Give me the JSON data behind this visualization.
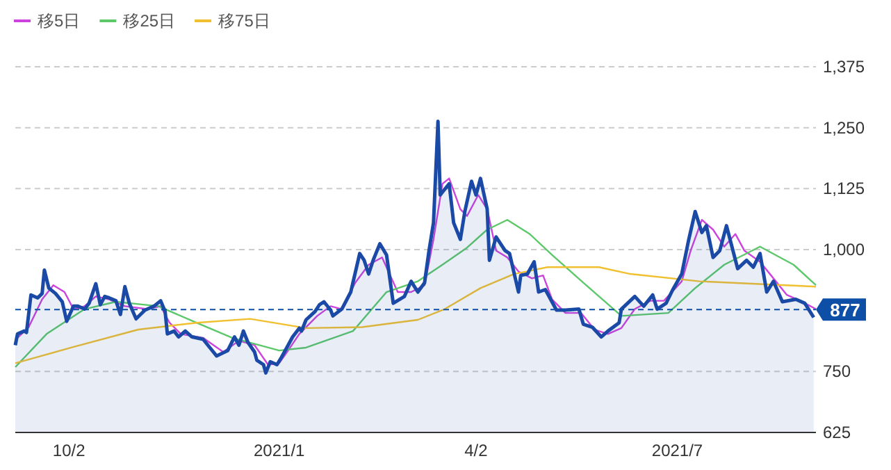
{
  "chart_data": {
    "type": "line",
    "xlim": [
      "2020-09-08",
      "2021-09-01"
    ],
    "xticks": [
      {
        "value": "2020-10-02",
        "label": "10/2"
      },
      {
        "value": "2021-01-04",
        "label": "2021/1"
      },
      {
        "value": "2021-04-02",
        "label": "4/2"
      },
      {
        "value": "2021-07-01",
        "label": "2021/7"
      }
    ],
    "ylim": [
      625,
      1375
    ],
    "yticks": [
      625,
      750,
      {
        "value": 1000,
        "label": "1,000"
      },
      {
        "value": 1125,
        "label": "1,125"
      },
      {
        "value": 1250,
        "label": "1,250"
      },
      {
        "value": 1375,
        "label": "1,375"
      }
    ],
    "grid": "y",
    "legend": "top left",
    "ref_lines": [
      {
        "axis": "y",
        "value": 877,
        "label": "877",
        "color": "#0d4ea6",
        "line_style": "dashed"
      }
    ],
    "series": [
      {
        "type": "area",
        "color": "#1a4aa6",
        "x": [
          "2020-09-08",
          "2020-09-09",
          "2020-09-12",
          "2020-09-13",
          "2020-09-15",
          "2020-09-18",
          "2020-09-20",
          "2020-09-21",
          "2020-09-23",
          "2020-09-26",
          "2020-09-29",
          "2020-10-01",
          "2020-10-04",
          "2020-10-06",
          "2020-10-09",
          "2020-10-11",
          "2020-10-14",
          "2020-10-16",
          "2020-10-18",
          "2020-10-20",
          "2020-10-23",
          "2020-10-25",
          "2020-10-27",
          "2020-10-29",
          "2020-11-01",
          "2020-11-05",
          "2020-11-09",
          "2020-11-12",
          "2020-11-14",
          "2020-11-15",
          "2020-11-18",
          "2020-11-20",
          "2020-11-23",
          "2020-11-26",
          "2020-12-01",
          "2020-12-04",
          "2020-12-07",
          "2020-12-12",
          "2020-12-15",
          "2020-12-17",
          "2020-12-19",
          "2020-12-21",
          "2020-12-24",
          "2020-12-25",
          "2020-12-28",
          "2020-12-29",
          "2020-12-31",
          "2021-01-03",
          "2021-01-05",
          "2021-01-08",
          "2021-01-10",
          "2021-01-13",
          "2021-01-14",
          "2021-01-16",
          "2021-01-20",
          "2021-01-22",
          "2021-01-24",
          "2021-01-27",
          "2021-01-28",
          "2021-02-01",
          "2021-02-05",
          "2021-02-09",
          "2021-02-11",
          "2021-02-13",
          "2021-02-15",
          "2021-02-18",
          "2021-02-21",
          "2021-02-24",
          "2021-03-01",
          "2021-03-04",
          "2021-03-07",
          "2021-03-10",
          "2021-03-12",
          "2021-03-14",
          "2021-03-16",
          "2021-03-17",
          "2021-03-18",
          "2021-03-21",
          "2021-03-23",
          "2021-03-26",
          "2021-03-28",
          "2021-03-31",
          "2021-04-02",
          "2021-04-04",
          "2021-04-07",
          "2021-04-08",
          "2021-04-11",
          "2021-04-15",
          "2021-04-17",
          "2021-04-21",
          "2021-04-22",
          "2021-04-25",
          "2021-04-28",
          "2021-04-30",
          "2021-05-03",
          "2021-05-08",
          "2021-05-12",
          "2021-05-18",
          "2021-05-20",
          "2021-05-24",
          "2021-05-28",
          "2021-05-31",
          "2021-06-05",
          "2021-06-06",
          "2021-06-12",
          "2021-06-16",
          "2021-06-20",
          "2021-06-22",
          "2021-06-26",
          "2021-06-29",
          "2021-07-03",
          "2021-07-06",
          "2021-07-09",
          "2021-07-12",
          "2021-07-14",
          "2021-07-17",
          "2021-07-20",
          "2021-07-23",
          "2021-07-28",
          "2021-08-01",
          "2021-08-04",
          "2021-08-07",
          "2021-08-10",
          "2021-08-13",
          "2021-08-17",
          "2021-08-23",
          "2021-08-27",
          "2021-08-31"
        ],
        "values": [
          804,
          827,
          833,
          830,
          907,
          901,
          910,
          958,
          921,
          910,
          893,
          853,
          884,
          884,
          878,
          890,
          930,
          887,
          904,
          901,
          895,
          867,
          924,
          890,
          858,
          876,
          884,
          895,
          873,
          827,
          833,
          821,
          833,
          821,
          816,
          799,
          782,
          793,
          821,
          804,
          833,
          810,
          790,
          773,
          764,
          747,
          770,
          764,
          779,
          804,
          821,
          839,
          833,
          856,
          873,
          887,
          893,
          876,
          864,
          878,
          913,
          992,
          978,
          950,
          978,
          1012,
          989,
          890,
          904,
          935,
          913,
          932,
          998,
          1055,
          1263,
          1112,
          1118,
          1135,
          1055,
          1021,
          1078,
          1140,
          1112,
          1146,
          1083,
          978,
          1026,
          998,
          992,
          913,
          947,
          950,
          975,
          913,
          918,
          876,
          876,
          878,
          847,
          841,
          821,
          833,
          850,
          878,
          904,
          884,
          907,
          878,
          890,
          918,
          950,
          1018,
          1078,
          1035,
          1049,
          984,
          998,
          1049,
          961,
          978,
          964,
          992,
          913,
          935,
          893,
          898,
          890,
          861
        ]
      },
      {
        "type": "line",
        "name": "移5日",
        "color": "#cc44dd",
        "x": [
          "2020-09-09",
          "2020-09-14",
          "2020-09-20",
          "2020-09-25",
          "2020-09-30",
          "2020-10-04",
          "2020-10-09",
          "2020-10-14",
          "2020-10-20",
          "2020-10-27",
          "2020-11-06",
          "2020-11-12",
          "2020-11-16",
          "2020-11-21",
          "2020-12-01",
          "2020-12-10",
          "2020-12-17",
          "2020-12-24",
          "2020-12-30",
          "2021-01-04",
          "2021-01-08",
          "2021-01-13",
          "2021-01-21",
          "2021-01-27",
          "2021-02-01",
          "2021-02-07",
          "2021-02-13",
          "2021-02-19",
          "2021-02-26",
          "2021-03-04",
          "2021-03-10",
          "2021-03-14",
          "2021-03-18",
          "2021-03-21",
          "2021-03-26",
          "2021-03-29",
          "2021-04-03",
          "2021-04-07",
          "2021-04-11",
          "2021-04-16",
          "2021-04-21",
          "2021-04-27",
          "2021-05-02",
          "2021-05-06",
          "2021-05-12",
          "2021-05-19",
          "2021-05-25",
          "2021-05-31",
          "2021-06-06",
          "2021-06-12",
          "2021-06-19",
          "2021-06-25",
          "2021-07-03",
          "2021-07-07",
          "2021-07-12",
          "2021-07-17",
          "2021-07-22",
          "2021-07-27",
          "2021-07-31",
          "2021-08-07",
          "2021-08-13",
          "2021-08-19",
          "2021-08-25",
          "2021-09-01"
        ],
        "values": [
          819,
          841,
          898,
          927,
          913,
          878,
          884,
          904,
          898,
          884,
          878,
          884,
          850,
          827,
          819,
          790,
          813,
          804,
          764,
          767,
          793,
          827,
          864,
          884,
          878,
          932,
          969,
          984,
          913,
          913,
          927,
          1021,
          1135,
          1146,
          1083,
          1069,
          1112,
          1083,
          998,
          984,
          955,
          941,
          947,
          898,
          870,
          870,
          836,
          827,
          839,
          878,
          895,
          895,
          935,
          998,
          1061,
          1041,
          1006,
          1032,
          998,
          975,
          941,
          907,
          895,
          878
        ]
      },
      {
        "type": "line",
        "name": "移25日",
        "color": "#5cc86a",
        "x": [
          "2020-09-08",
          "2020-09-22",
          "2020-10-09",
          "2020-10-23",
          "2020-11-11",
          "2020-11-28",
          "2020-12-14",
          "2021-01-04",
          "2021-01-16",
          "2021-02-06",
          "2021-02-21",
          "2021-03-07",
          "2021-03-18",
          "2021-03-29",
          "2021-04-07",
          "2021-04-16",
          "2021-04-26",
          "2021-05-06",
          "2021-05-20",
          "2021-06-06",
          "2021-06-27",
          "2021-07-09",
          "2021-07-22",
          "2021-08-07",
          "2021-08-22",
          "2021-09-01"
        ],
        "values": [
          759,
          827,
          878,
          893,
          884,
          850,
          819,
          793,
          799,
          833,
          913,
          935,
          969,
          1004,
          1041,
          1061,
          1032,
          989,
          932,
          864,
          870,
          921,
          969,
          1006,
          969,
          927
        ]
      },
      {
        "type": "line",
        "name": "移75日",
        "color": "#f0c030",
        "x": [
          "2020-09-08",
          "2020-10-03",
          "2020-11-02",
          "2020-11-28",
          "2020-12-22",
          "2021-01-16",
          "2021-02-10",
          "2021-03-07",
          "2021-03-19",
          "2021-04-04",
          "2021-04-19",
          "2021-05-04",
          "2021-05-27",
          "2021-06-10",
          "2021-07-11",
          "2021-09-01"
        ],
        "values": [
          767,
          799,
          836,
          850,
          858,
          839,
          841,
          856,
          878,
          921,
          950,
          964,
          964,
          950,
          935,
          924
        ]
      }
    ]
  }
}
